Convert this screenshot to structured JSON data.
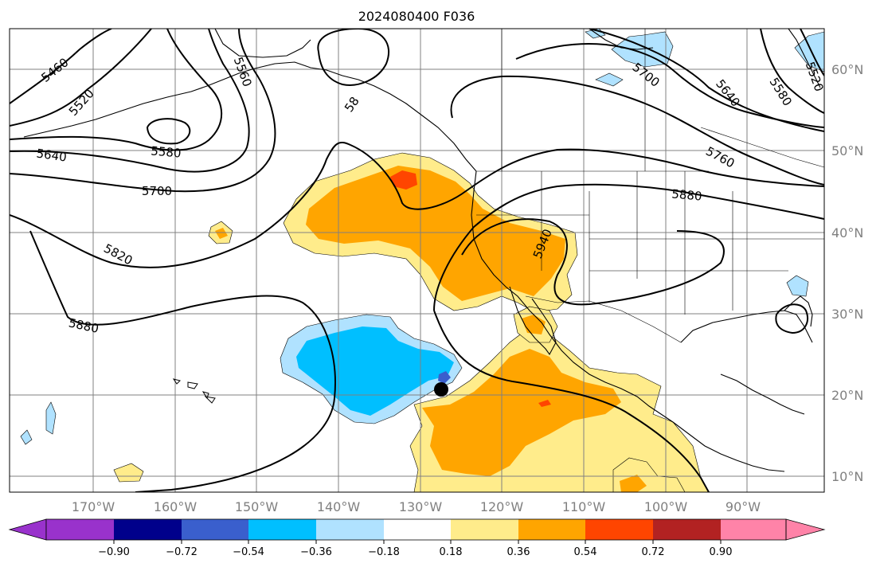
{
  "title": "2024080400 F036",
  "map": {
    "lon_ticks": [
      "170°W",
      "160°W",
      "150°W",
      "140°W",
      "130°W",
      "120°W",
      "110°W",
      "100°W",
      "90°W"
    ],
    "lat_ticks": [
      "60°N",
      "50°N",
      "40°N",
      "30°N",
      "20°N",
      "10°N"
    ],
    "contour_labels": [
      {
        "id": "c5460",
        "text": "5460"
      },
      {
        "id": "c5520a",
        "text": "5520"
      },
      {
        "id": "c5560",
        "text": "5560"
      },
      {
        "id": "c5640a",
        "text": "5640"
      },
      {
        "id": "c5580a",
        "text": "5580"
      },
      {
        "id": "c5700a",
        "text": "5700"
      },
      {
        "id": "c5820",
        "text": "5820"
      },
      {
        "id": "c5880a",
        "text": "5880"
      },
      {
        "id": "c58x",
        "text": "58"
      },
      {
        "id": "c5700b",
        "text": "5700"
      },
      {
        "id": "c5640b",
        "text": "5640"
      },
      {
        "id": "c5580b",
        "text": "5580"
      },
      {
        "id": "c5520b",
        "text": "5520"
      },
      {
        "id": "c5760",
        "text": "5760"
      },
      {
        "id": "c5880b",
        "text": "5880"
      },
      {
        "id": "c5940",
        "text": "5940"
      }
    ],
    "colors": {
      "neg_extreme": "#9932CC",
      "neg_090": "#00008B",
      "neg_072": "#3A5FCD",
      "neg_054": "#00BFFF",
      "neg_036": "#B0E2FF",
      "neutral": "#FFFFFF",
      "pos_018": "#FFEC8B",
      "pos_036": "#FFA500",
      "pos_054": "#FF4500",
      "pos_072": "#B22222",
      "pos_090": "#FF83A8"
    }
  },
  "colorbar": {
    "ticks": [
      "−0.90",
      "−0.72",
      "−0.54",
      "−0.36",
      "−0.18",
      "0.18",
      "0.36",
      "0.54",
      "0.72",
      "0.90"
    ],
    "bins": [
      {
        "name": "bin-lt-090",
        "color": "#9932CC"
      },
      {
        "name": "bin-090-072",
        "color": "#00008B"
      },
      {
        "name": "bin-072-054",
        "color": "#3A5FCD"
      },
      {
        "name": "bin-054-036",
        "color": "#00BFFF"
      },
      {
        "name": "bin-036-018",
        "color": "#B0E2FF"
      },
      {
        "name": "bin-018-018",
        "color": "#FFFFFF"
      },
      {
        "name": "bin-018-036",
        "color": "#FFEC8B"
      },
      {
        "name": "bin-036-054",
        "color": "#FFA500"
      },
      {
        "name": "bin-054-072",
        "color": "#FF4500"
      },
      {
        "name": "bin-072-090",
        "color": "#B22222"
      },
      {
        "name": "bin-gt-090",
        "color": "#FF83A8"
      }
    ]
  }
}
